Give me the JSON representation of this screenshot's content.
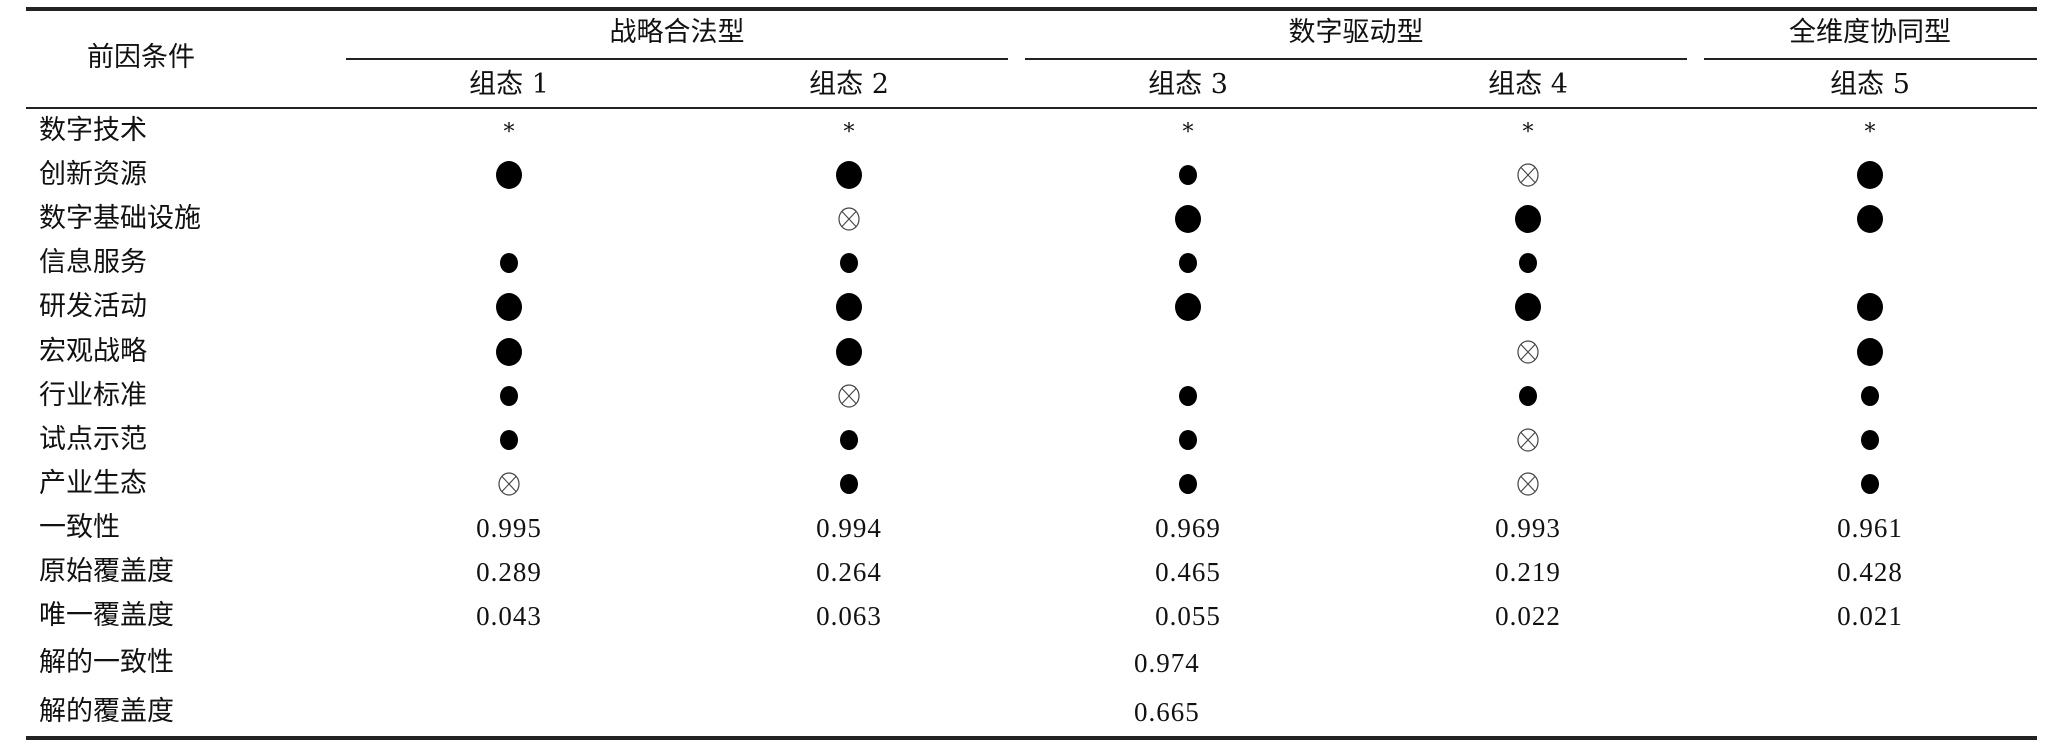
{
  "header": {
    "condition_label": "前因条件",
    "groups": [
      {
        "label": "战略合法型",
        "configs": [
          "组态 1",
          "组态 2"
        ]
      },
      {
        "label": "数字驱动型",
        "configs": [
          "组态 3",
          "组态 4"
        ]
      },
      {
        "label": "全维度协同型",
        "configs": [
          "组态 5"
        ]
      }
    ]
  },
  "legend_symbols": {
    "any": "*",
    "core": "large filled circle",
    "peripheral": "small filled circle",
    "absent": "crossed circle"
  },
  "conditions": [
    {
      "label": "数字技术",
      "cells": [
        "any",
        "any",
        "any",
        "any",
        "any"
      ]
    },
    {
      "label": "创新资源",
      "cells": [
        "core",
        "core",
        "peripheral",
        "absent",
        "core"
      ]
    },
    {
      "label": "数字基础设施",
      "cells": [
        "",
        "absent",
        "core",
        "core",
        "core"
      ]
    },
    {
      "label": "信息服务",
      "cells": [
        "peripheral",
        "peripheral",
        "peripheral",
        "peripheral",
        ""
      ]
    },
    {
      "label": "研发活动",
      "cells": [
        "core",
        "core",
        "core",
        "core",
        "core"
      ]
    },
    {
      "label": "宏观战略",
      "cells": [
        "core",
        "core",
        "",
        "absent",
        "core"
      ]
    },
    {
      "label": "行业标准",
      "cells": [
        "peripheral",
        "absent",
        "peripheral",
        "peripheral",
        "peripheral"
      ]
    },
    {
      "label": "试点示范",
      "cells": [
        "peripheral",
        "peripheral",
        "peripheral",
        "absent",
        "peripheral"
      ]
    },
    {
      "label": "产业生态",
      "cells": [
        "absent",
        "peripheral",
        "peripheral",
        "absent",
        "peripheral"
      ]
    }
  ],
  "metrics": [
    {
      "label": "一致性",
      "values": [
        "0.995",
        "0.994",
        "0.969",
        "0.993",
        "0.961"
      ]
    },
    {
      "label": "原始覆盖度",
      "values": [
        "0.289",
        "0.264",
        "0.465",
        "0.219",
        "0.428"
      ]
    },
    {
      "label": "唯一覆盖度",
      "values": [
        "0.043",
        "0.063",
        "0.055",
        "0.022",
        "0.021"
      ]
    }
  ],
  "solution": [
    {
      "label": "解的一致性",
      "value": "0.974"
    },
    {
      "label": "解的覆盖度",
      "value": "0.665"
    }
  ]
}
